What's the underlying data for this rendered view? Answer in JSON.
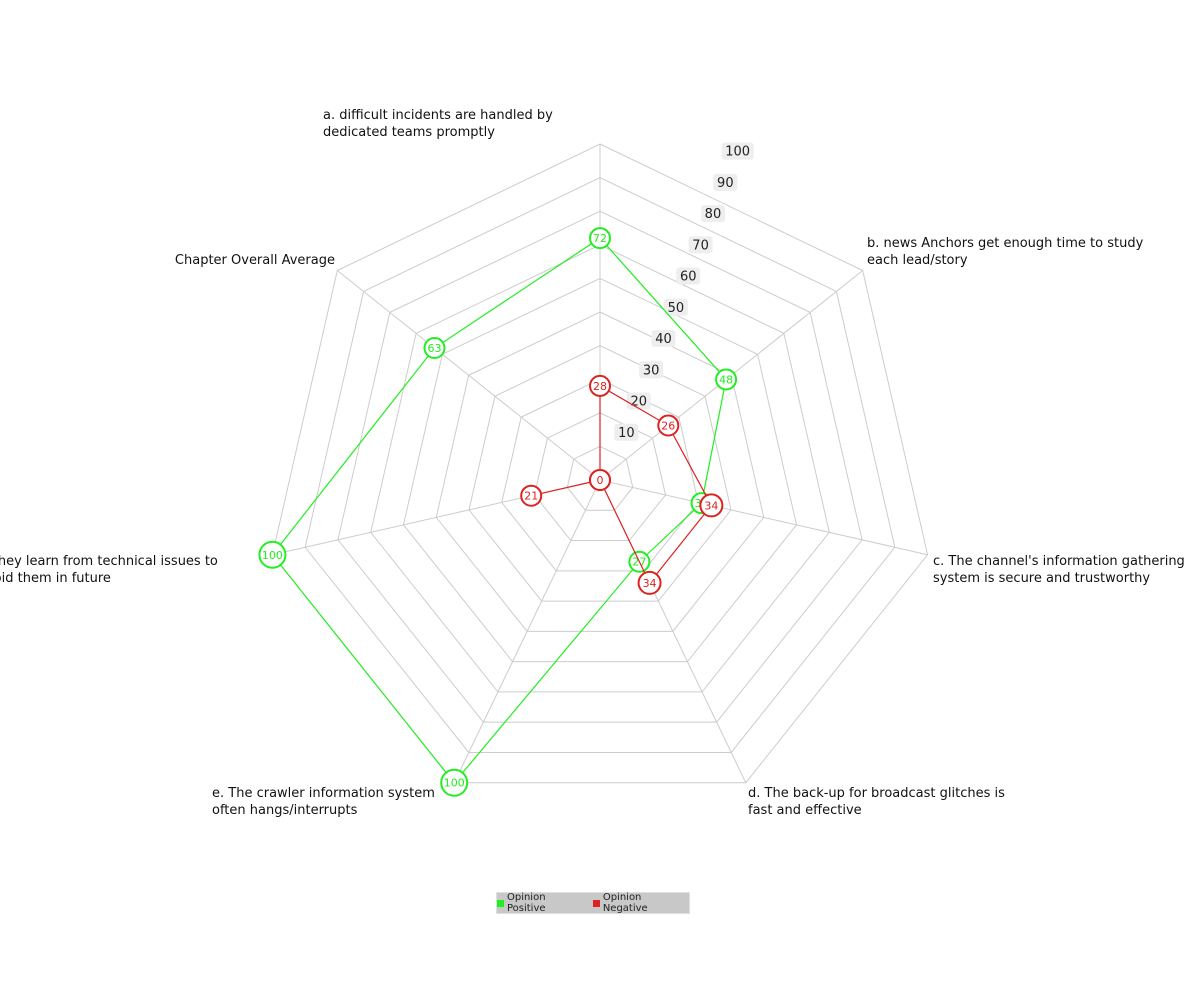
{
  "chart_data": {
    "type": "radar",
    "title": "",
    "categories": [
      "a. difficult incidents are handled by dedicated teams promptly",
      "b. news Anchors get enough time to study each lead/story",
      "c. The channel's information gathering system is secure and trustworthy",
      "d. The back-up for broadcast glitches is fast and effective",
      "e. The crawler information system often hangs/interrupts",
      "f. They learn from technical issues to avoid them in future",
      "Chapter Overall Average"
    ],
    "scale": {
      "min": 0,
      "max": 100,
      "ticks": [
        10,
        20,
        30,
        40,
        50,
        60,
        70,
        80,
        90,
        100
      ]
    },
    "series": [
      {
        "name": "Opinion Positive",
        "color": "#22ee22",
        "values": [
          72,
          48,
          31,
          27,
          100,
          100,
          63
        ]
      },
      {
        "name": "Opinion Negative",
        "color": "#dd2222",
        "values": [
          28,
          26,
          34,
          34,
          0,
          21,
          0
        ]
      }
    ],
    "legend_position": "bottom-center"
  }
}
